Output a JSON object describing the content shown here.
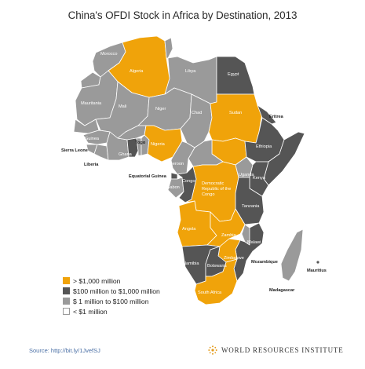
{
  "title": "China's OFDI Stock in Africa by Destination, 2013",
  "colors": {
    "over_1000m": "#f0a30a",
    "100m_to_1000m": "#555555",
    "1m_to_100m": "#9a9a9a",
    "under_1m": "#ffffff",
    "border": "#ffffff",
    "brand_gold": "#e39b1c"
  },
  "legend": [
    {
      "label": "> $1,000 million",
      "color": "#f0a30a"
    },
    {
      "label": "$100 million to $1,000 million",
      "color": "#555555"
    },
    {
      "label": "$ 1 million to $100 million",
      "color": "#9a9a9a"
    },
    {
      "label": "< $1 million",
      "color": "#ffffff"
    }
  ],
  "countries": [
    {
      "name": "Morocco",
      "category": "1m_to_100m"
    },
    {
      "name": "Algeria",
      "category": "over_1000m"
    },
    {
      "name": "Libya",
      "category": "1m_to_100m"
    },
    {
      "name": "Egypt",
      "category": "100m_to_1000m"
    },
    {
      "name": "Mauritania",
      "category": "1m_to_100m"
    },
    {
      "name": "Mali",
      "category": "1m_to_100m"
    },
    {
      "name": "Niger",
      "category": "1m_to_100m"
    },
    {
      "name": "Chad",
      "category": "1m_to_100m"
    },
    {
      "name": "Sudan",
      "category": "over_1000m"
    },
    {
      "name": "Eritrea",
      "category": "100m_to_1000m"
    },
    {
      "name": "Ethiopia",
      "category": "100m_to_1000m"
    },
    {
      "name": "Guinea",
      "category": "1m_to_100m"
    },
    {
      "name": "Sierra Leone",
      "category": "1m_to_100m"
    },
    {
      "name": "Liberia",
      "category": "1m_to_100m"
    },
    {
      "name": "Ghana",
      "category": "100m_to_1000m"
    },
    {
      "name": "Togo",
      "category": "1m_to_100m"
    },
    {
      "name": "Nigeria",
      "category": "over_1000m"
    },
    {
      "name": "Cameroon",
      "category": "1m_to_100m"
    },
    {
      "name": "Equatorial Guinea",
      "category": "100m_to_1000m"
    },
    {
      "name": "Gabon",
      "category": "1m_to_100m"
    },
    {
      "name": "Congo",
      "category": "100m_to_1000m"
    },
    {
      "name": "Democratic Republic of the Congo",
      "category": "over_1000m"
    },
    {
      "name": "Uganda",
      "category": "1m_to_100m"
    },
    {
      "name": "Kenya",
      "category": "100m_to_1000m"
    },
    {
      "name": "Tanzania",
      "category": "100m_to_1000m"
    },
    {
      "name": "Angola",
      "category": "over_1000m"
    },
    {
      "name": "Zambia",
      "category": "over_1000m"
    },
    {
      "name": "Malawi",
      "category": "1m_to_100m"
    },
    {
      "name": "Mozambique",
      "category": "100m_to_1000m"
    },
    {
      "name": "Zimbabwe",
      "category": "over_1000m"
    },
    {
      "name": "Namibia",
      "category": "100m_to_1000m"
    },
    {
      "name": "Botswana",
      "category": "100m_to_1000m"
    },
    {
      "name": "South Africa",
      "category": "over_1000m"
    },
    {
      "name": "Madagascar",
      "category": "1m_to_100m"
    },
    {
      "name": "Mauritius",
      "category": "100m_to_1000m"
    }
  ],
  "map_labels": {
    "morocco": "Morocco",
    "algeria": "Algeria",
    "libya": "Libya",
    "egypt": "Egypt",
    "mauritania": "Mauritania",
    "mali": "Mali",
    "niger": "Niger",
    "chad": "Chad",
    "sudan": "Sudan",
    "eritrea": "Eritrea",
    "ethiopia": "Ethiopia",
    "guinea": "Guinea",
    "sierra_leone": "Sierra Leone",
    "liberia": "Liberia",
    "ghana": "Ghana",
    "togo": "Togo",
    "nigeria": "Nigeria",
    "cameroon": "Cameroon",
    "equatorial_guinea": "Equatorial Guinea",
    "gabon": "Gabon",
    "congo": "Congo",
    "drc_line1": "Democratic",
    "drc_line2": "Republic of the",
    "drc_line3": "Congo",
    "uganda": "Uganda",
    "kenya": "Kenya",
    "tanzania": "Tanzania",
    "angola": "Angola",
    "zambia": "Zambia",
    "malawi": "Malawi",
    "mozambique": "Mozambique",
    "zimbabwe": "Zimbabwe",
    "namibia": "Namibia",
    "botswana": "Botswana",
    "south_africa": "South Africa",
    "madagascar": "Madagascar",
    "mauritius": "Mauritius"
  },
  "source": "Source: http://bit.ly/1JvefSJ",
  "brand": "WORLD RESOURCES INSTITUTE"
}
